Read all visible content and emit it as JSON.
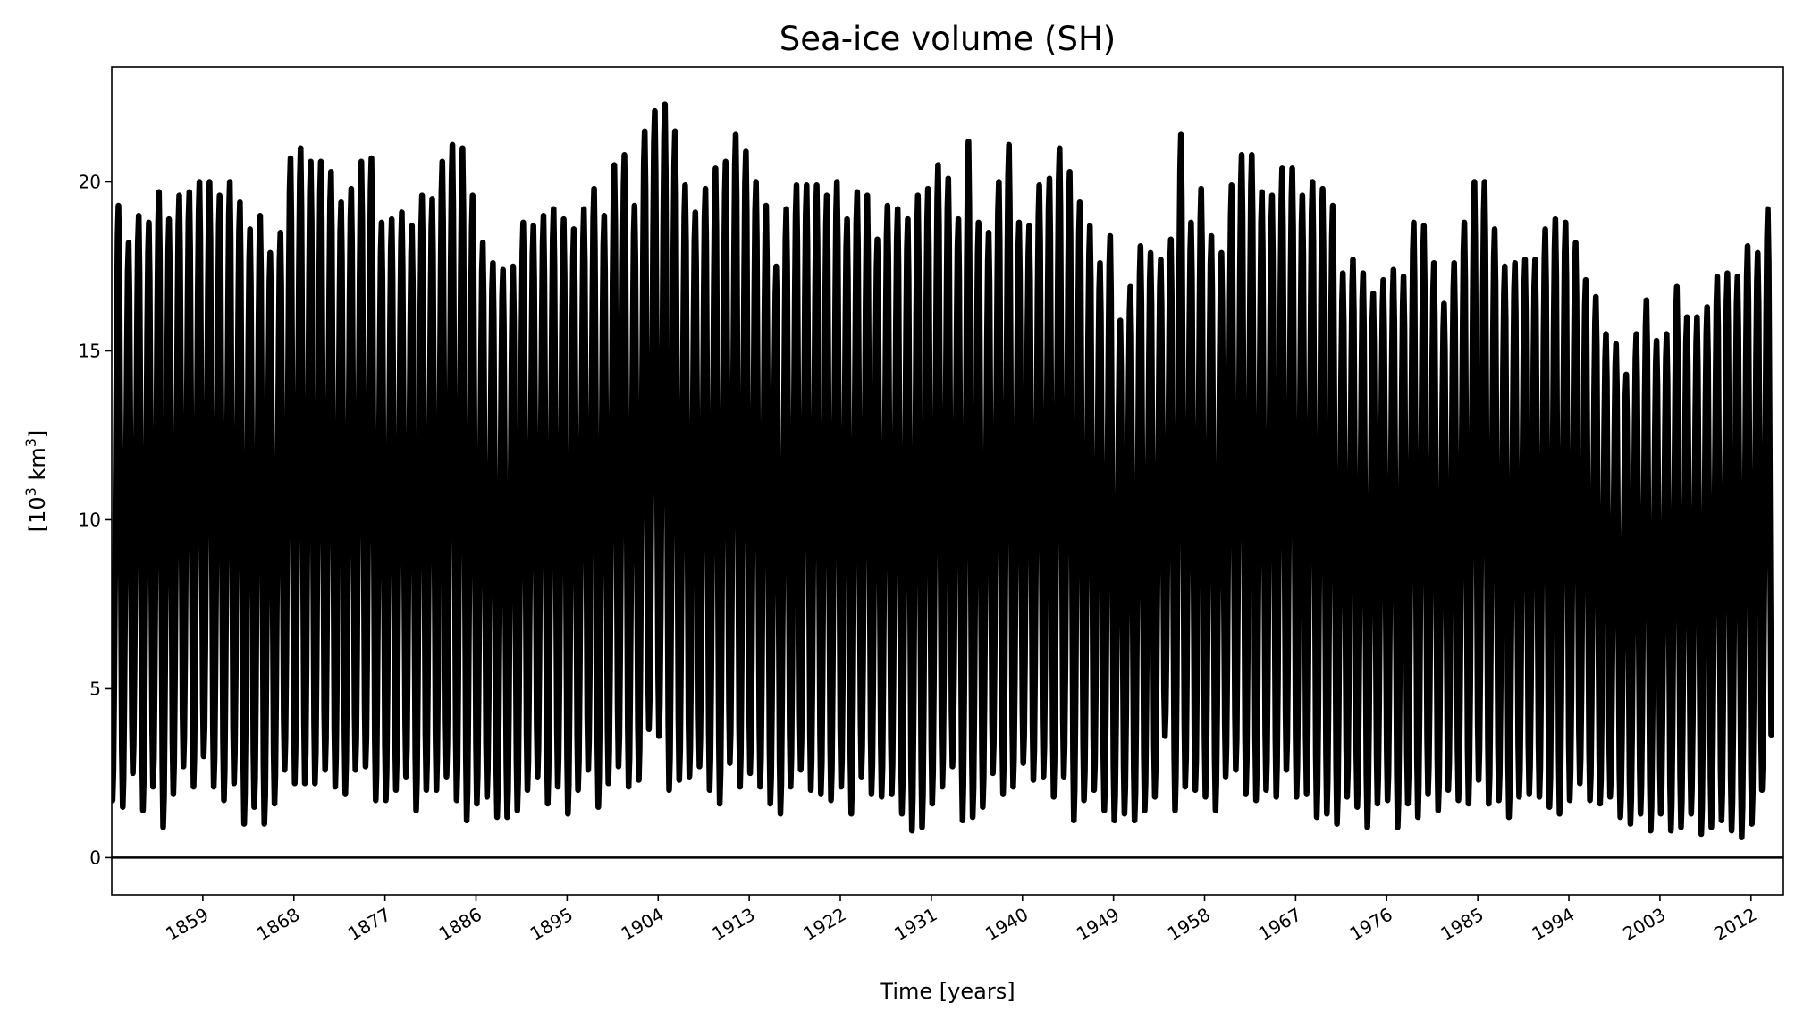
{
  "chart_data": {
    "type": "line",
    "title": "Sea-ice volume (SH)",
    "xlabel": "Time [years]",
    "ylabel_base": "[10",
    "ylabel_sup": "3",
    "ylabel_unit": " km",
    "ylabel_unit_sup": "3",
    "ylabel_close": "]",
    "xlim": [
      1850,
      2015.2
    ],
    "ylim": [
      -1.1,
      23.4
    ],
    "grid": false,
    "line_color": "#000000",
    "hline": {
      "y": 0,
      "color": "#000000"
    },
    "xticks": [
      1859,
      1868,
      1877,
      1886,
      1895,
      1904,
      1913,
      1922,
      1931,
      1940,
      1949,
      1958,
      1967,
      1976,
      1985,
      1994,
      2003,
      2012
    ],
    "xtick_labels": [
      "1859",
      "1868",
      "1877",
      "1886",
      "1895",
      "1904",
      "1913",
      "1922",
      "1931",
      "1940",
      "1949",
      "1958",
      "1967",
      "1976",
      "1985",
      "1994",
      "2003",
      "2012"
    ],
    "yticks": [
      0,
      5,
      10,
      15,
      20
    ],
    "ytick_labels": [
      "0",
      "5",
      "10",
      "15",
      "20"
    ],
    "series": [
      {
        "name": "Sea-ice volume (SH)",
        "start_year": 1850,
        "resolution": "monthly seasonal cycle (annual max/min shown)",
        "annual_max": [
          19.3,
          18.2,
          19.0,
          18.8,
          19.7,
          18.9,
          19.6,
          19.7,
          20.0,
          20.0,
          19.6,
          20.0,
          19.4,
          18.6,
          19.0,
          17.9,
          18.5,
          20.7,
          21.0,
          20.6,
          20.6,
          20.3,
          19.4,
          19.8,
          20.6,
          20.7,
          18.8,
          18.9,
          19.1,
          18.7,
          19.6,
          19.5,
          20.6,
          21.1,
          21.0,
          19.6,
          18.2,
          17.6,
          17.4,
          17.5,
          18.8,
          18.7,
          19.0,
          19.2,
          18.9,
          18.6,
          19.2,
          19.8,
          19.0,
          20.5,
          20.8,
          19.3,
          21.5,
          22.1,
          22.3,
          21.5,
          19.9,
          19.1,
          19.8,
          20.4,
          20.6,
          21.4,
          20.9,
          20.0,
          19.3,
          17.5,
          19.2,
          19.9,
          19.9,
          19.9,
          19.6,
          20.0,
          18.9,
          19.7,
          19.6,
          18.3,
          19.3,
          19.2,
          18.9,
          19.6,
          19.8,
          20.5,
          20.1,
          18.9,
          21.2,
          18.8,
          18.5,
          20.0,
          21.1,
          18.8,
          18.7,
          19.9,
          20.1,
          21.0,
          20.3,
          19.4,
          18.7,
          17.6,
          18.4,
          15.9,
          16.9,
          18.1,
          17.9,
          17.7,
          18.3,
          21.4,
          18.8,
          19.8,
          18.4,
          17.9,
          19.9,
          20.8,
          20.8,
          19.7,
          19.6,
          20.4,
          20.4,
          19.6,
          20.0,
          19.8,
          19.3,
          17.3,
          17.7,
          17.3,
          16.7,
          17.1,
          17.4,
          17.2,
          18.8,
          18.7,
          17.6,
          16.4,
          17.6,
          18.8,
          20.0,
          20.0,
          18.6,
          17.5,
          17.6,
          17.7,
          17.7,
          18.6,
          18.9,
          18.8,
          18.2,
          17.1,
          16.6,
          15.5,
          15.2,
          14.3,
          15.5,
          16.5,
          15.3,
          15.5,
          16.9,
          16.0,
          16.0,
          16.3,
          17.2,
          17.3,
          17.2,
          18.1,
          17.9,
          19.2
        ],
        "annual_min": [
          1.7,
          1.5,
          2.5,
          1.4,
          2.1,
          0.9,
          1.9,
          2.7,
          2.1,
          3.0,
          2.1,
          1.7,
          2.2,
          1.0,
          1.5,
          1.0,
          1.6,
          2.6,
          2.2,
          2.2,
          2.2,
          2.6,
          2.1,
          1.9,
          2.6,
          2.7,
          1.7,
          1.7,
          2.0,
          2.4,
          1.4,
          2.0,
          2.0,
          2.4,
          1.7,
          1.1,
          1.6,
          1.8,
          1.2,
          1.2,
          1.4,
          2.0,
          2.4,
          1.6,
          2.1,
          1.3,
          2.0,
          2.6,
          1.5,
          2.2,
          2.7,
          2.1,
          2.3,
          3.8,
          3.6,
          2.0,
          2.3,
          2.4,
          2.7,
          2.0,
          1.6,
          2.8,
          2.1,
          2.5,
          2.1,
          1.6,
          1.3,
          2.1,
          2.6,
          2.0,
          1.9,
          1.7,
          2.1,
          1.3,
          2.4,
          1.9,
          1.8,
          1.9,
          1.3,
          0.8,
          0.9,
          1.6,
          2.1,
          2.7,
          1.1,
          1.2,
          1.5,
          2.5,
          1.9,
          2.1,
          2.8,
          2.3,
          2.4,
          1.8,
          2.4,
          1.1,
          1.7,
          2.0,
          1.4,
          1.1,
          1.3,
          1.1,
          1.4,
          1.8,
          3.6,
          1.4,
          2.1,
          2.0,
          1.8,
          1.4,
          2.4,
          2.6,
          1.9,
          1.7,
          2.0,
          1.8,
          2.6,
          1.8,
          1.9,
          1.2,
          1.3,
          1.0,
          1.8,
          1.5,
          0.9,
          1.6,
          1.7,
          0.9,
          1.6,
          1.2,
          1.9,
          1.4,
          2.0,
          1.7,
          1.6,
          2.3,
          1.6,
          1.7,
          1.2,
          1.8,
          1.9,
          1.8,
          1.5,
          1.3,
          1.7,
          2.2,
          1.7,
          1.6,
          1.8,
          1.2,
          1.0,
          1.3,
          0.8,
          1.3,
          0.8,
          0.9,
          1.3,
          0.7,
          0.9,
          1.1,
          0.8,
          0.6,
          1.0,
          2.0
        ]
      }
    ]
  }
}
